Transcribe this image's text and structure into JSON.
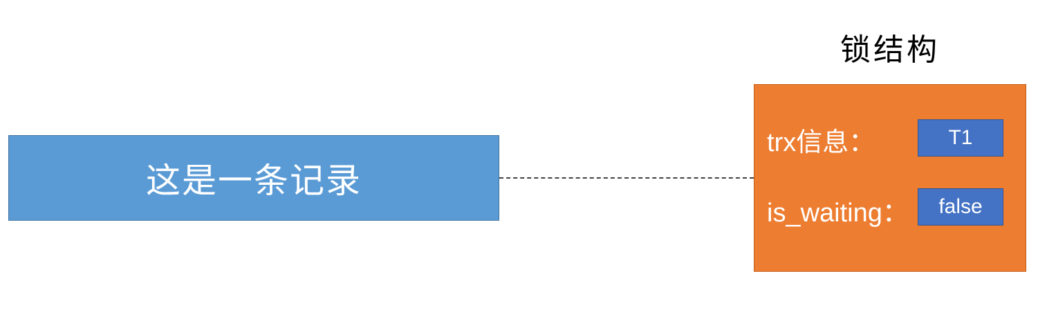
{
  "record": {
    "label": "这是一条记录"
  },
  "lock": {
    "title": "锁结构",
    "trx_label": "trx信息：",
    "trx_value": "T1",
    "waiting_label": "is_waiting：",
    "waiting_value": "false"
  },
  "colors": {
    "record_fill": "#5b9bd5",
    "lock_fill": "#ed7d31",
    "value_fill": "#4472c4",
    "connector": "#404040"
  }
}
